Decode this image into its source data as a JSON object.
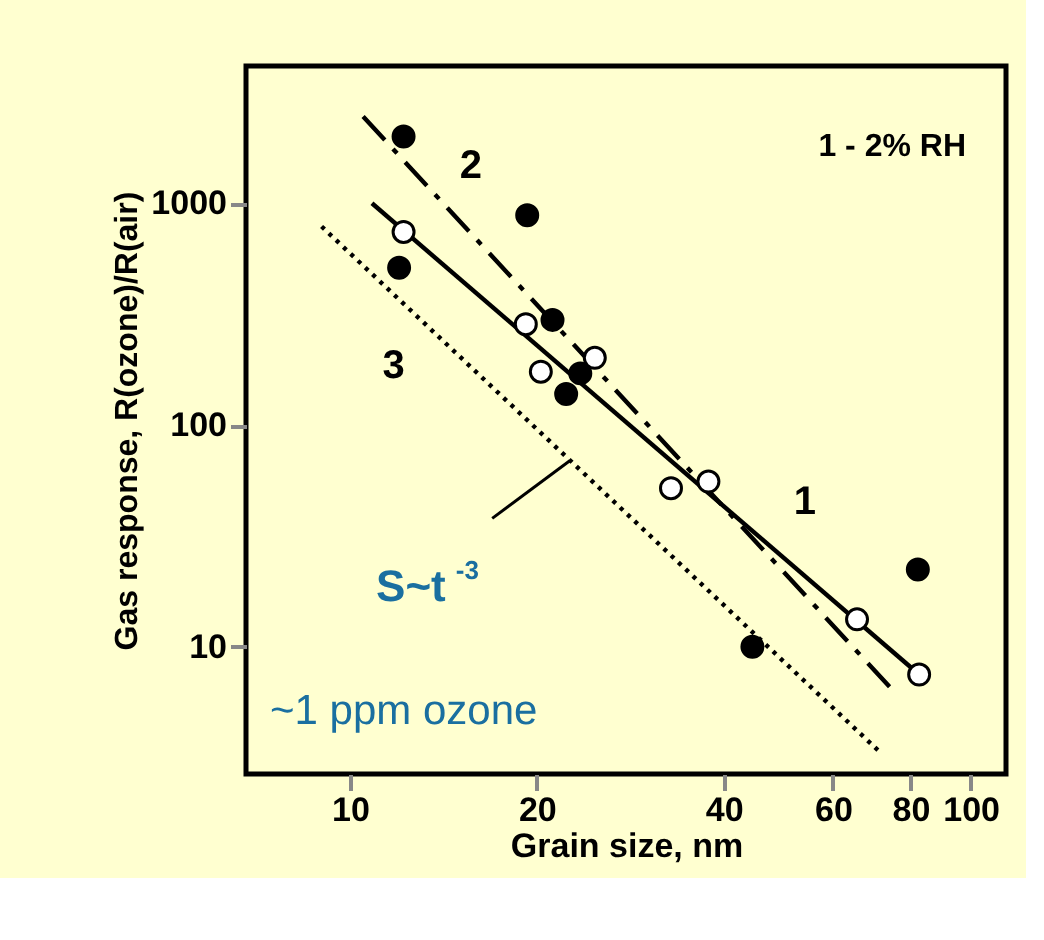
{
  "chart_data": {
    "type": "scatter",
    "xlabel": "Grain size,  nm",
    "ylabel": "Gas response, R(ozone)/R(air)",
    "log": "xy",
    "xlim": [
      6.8,
      114
    ],
    "ylim": [
      2.67,
      4160
    ],
    "xticks": [
      10,
      20,
      40,
      60,
      80,
      100
    ],
    "yticks": [
      10,
      100,
      1000
    ],
    "grid": false,
    "series": [
      {
        "name": "1",
        "type": "line",
        "color": "#000000",
        "line_style": "solid",
        "marker": "none",
        "x": [
          10.85,
          82.6
        ],
        "values": [
          1000,
          7.5
        ]
      },
      {
        "name": "2",
        "type": "line",
        "color": "#000000",
        "line_style": "dashed",
        "marker": "none",
        "x": [
          10.5,
          75.2
        ],
        "values": [
          2460,
          6.3
        ]
      },
      {
        "name": "3",
        "type": "line",
        "color": "#000000",
        "line_style": "dotted",
        "marker": "none",
        "x": [
          9.0,
          71.6
        ],
        "values": [
          786,
          3.33
        ]
      },
      {
        "color": "#000000",
        "marker": "circle",
        "x": [
          12.2,
          19.3,
          12.0,
          21.2,
          23.5,
          22.3,
          44.5,
          82.2
        ],
        "values": [
          2000,
          883,
          512,
          298,
          171,
          138,
          10,
          22.3
        ]
      },
      {
        "color": "#ffffff",
        "marker": "circle",
        "x": [
          12.2,
          19.2,
          20.3,
          24.8,
          32.9,
          37.8,
          65.6,
          82.6
        ],
        "values": [
          743,
          285,
          174,
          201,
          51.9,
          55.6,
          13.3,
          7.5
        ]
      }
    ],
    "annotations": [
      {
        "text": "S~t $^{-3}$",
        "x": 22.6,
        "y": 69
      },
      "1 - 2% RH",
      "~1 ppm ozone"
    ]
  }
}
